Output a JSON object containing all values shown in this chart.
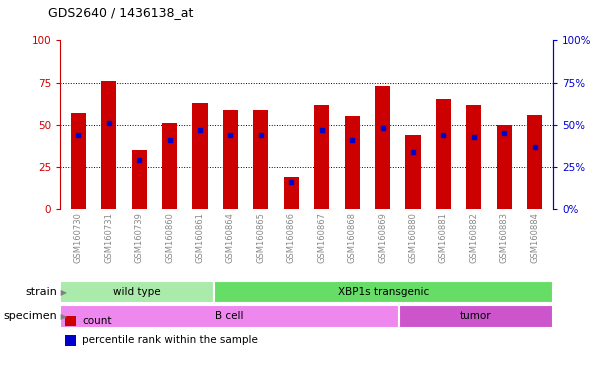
{
  "title": "GDS2640 / 1436138_at",
  "samples": [
    "GSM160730",
    "GSM160731",
    "GSM160739",
    "GSM160860",
    "GSM160861",
    "GSM160864",
    "GSM160865",
    "GSM160866",
    "GSM160867",
    "GSM160868",
    "GSM160869",
    "GSM160880",
    "GSM160881",
    "GSM160882",
    "GSM160883",
    "GSM160884"
  ],
  "count_values": [
    57,
    76,
    35,
    51,
    63,
    59,
    59,
    19,
    62,
    55,
    73,
    44,
    65,
    62,
    50,
    56
  ],
  "percentile_values": [
    44,
    51,
    29,
    41,
    47,
    44,
    44,
    16,
    47,
    41,
    48,
    34,
    44,
    43,
    45,
    37
  ],
  "ylim": [
    0,
    100
  ],
  "yticks": [
    0,
    25,
    50,
    75,
    100
  ],
  "bar_color": "#cc0000",
  "dot_color": "#0000cc",
  "bar_width": 0.5,
  "strain_groups": [
    {
      "label": "wild type",
      "start": 0,
      "end": 5,
      "color": "#aaeaaa"
    },
    {
      "label": "XBP1s transgenic",
      "start": 5,
      "end": 16,
      "color": "#66dd66"
    }
  ],
  "specimen_groups": [
    {
      "label": "B cell",
      "start": 0,
      "end": 11,
      "color": "#ee88ee"
    },
    {
      "label": "tumor",
      "start": 11,
      "end": 16,
      "color": "#cc55cc"
    }
  ],
  "legend_items": [
    {
      "label": "count",
      "color": "#cc0000"
    },
    {
      "label": "percentile rank within the sample",
      "color": "#0000cc"
    }
  ],
  "left_axis_color": "#cc0000",
  "right_axis_color": "#0000cc",
  "tick_label_color": "#888888",
  "plot_bg_color": "#ffffff",
  "fig_bg_color": "#ffffff"
}
